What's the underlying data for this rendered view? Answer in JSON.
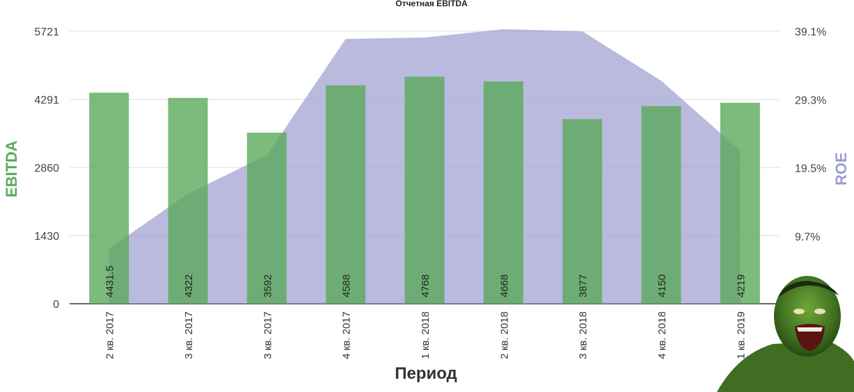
{
  "chart_data": {
    "type": "bar",
    "title": "Отчетная EBITDA",
    "xlabel": "Период",
    "ylabel": "EBITDA",
    "y2label": "ROE",
    "categories": [
      "2 кв. 2017",
      "3 кв. 2017",
      "3 кв. 2017",
      "4 кв. 2017",
      "1 кв. 2018",
      "2 кв. 2018",
      "3 кв. 2018",
      "4 кв. 2018",
      "1 кв. 2019"
    ],
    "series": [
      {
        "name": "EBITDA",
        "type": "bar",
        "axis": "left",
        "color": "#5aaa5a",
        "values": [
          4431.5,
          4322,
          3592,
          4588,
          4768,
          4668,
          3877,
          4150,
          4219
        ],
        "value_labels": [
          "4431.5",
          "4322",
          "3592",
          "4588",
          "4768",
          "4668",
          "3877",
          "4150",
          "4219"
        ]
      },
      {
        "name": "ROE",
        "type": "area",
        "axis": "right",
        "color": "#9c9cd2",
        "values": [
          7.9,
          15.8,
          21.3,
          38.0,
          38.2,
          39.4,
          39.1,
          32.0,
          22.0
        ]
      }
    ],
    "ylim": [
      0,
      5721
    ],
    "y_ticks": [
      "0",
      "1430",
      "2860",
      "4291",
      "5721"
    ],
    "y2lim": [
      0,
      39.1
    ],
    "y2_ticks": [
      "9.7%",
      "19.5%",
      "29.3%",
      "39.1%"
    ],
    "grid": true,
    "colors": {
      "ebitda_title": "#5aaa5a",
      "roe_title": "#9c9cd2",
      "grid": "#dddddd",
      "axis": "#333333"
    }
  },
  "decoration": {
    "icon": "hulk-mascot-icon"
  }
}
